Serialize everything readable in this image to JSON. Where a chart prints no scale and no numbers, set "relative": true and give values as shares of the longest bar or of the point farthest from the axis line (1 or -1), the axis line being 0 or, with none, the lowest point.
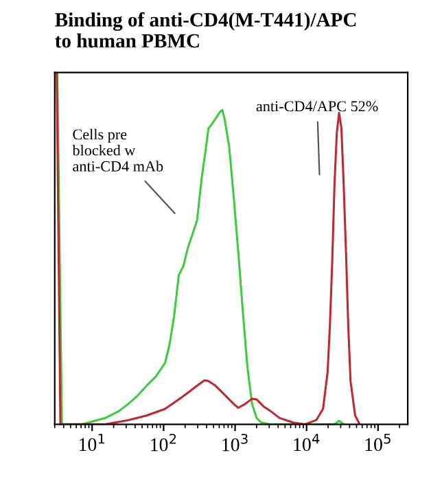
{
  "chart_data": {
    "type": "line",
    "title": "Binding of anti-CD4(M-T441)/APC\nto human PBMC",
    "relative": true,
    "log": "x",
    "xlim": [
      3,
      260000
    ],
    "xticks": [
      {
        "value": 10,
        "label": "10$^{1}$"
      },
      {
        "value": 100,
        "label": "10$^{2}$"
      },
      {
        "value": 1000,
        "label": "10$^{3}$"
      },
      {
        "value": 10000,
        "label": "10$^{4}$"
      },
      {
        "value": 100000,
        "label": "10$^{5}$"
      }
    ],
    "tick_labels": "x",
    "grid": false,
    "marker": "none",
    "line_style": "solid",
    "series": [
      {
        "color": "#3ccc3c",
        "x": [
          3.26,
          3.78,
          7.3,
          15.3,
          23.9,
          32,
          43,
          58,
          78,
          105,
          121,
          140,
          163,
          189,
          219,
          254,
          294,
          340,
          394,
          425,
          457,
          530,
          614,
          662,
          713,
          826,
          957,
          1109,
          1285,
          1489,
          1726,
          2000,
          2318,
          3117,
          24600,
          28500,
          33000
        ],
        "values": [
          1,
          0,
          0,
          0.018,
          0.038,
          0.058,
          0.081,
          0.11,
          0.136,
          0.175,
          0.227,
          0.306,
          0.424,
          0.45,
          0.502,
          0.541,
          0.58,
          0.698,
          0.79,
          0.842,
          0.849,
          0.868,
          0.888,
          0.894,
          0.868,
          0.79,
          0.646,
          0.489,
          0.319,
          0.162,
          0.058,
          0.018,
          0.005,
          0,
          0,
          0.01,
          0
        ]
      },
      {
        "color": "#c0282e",
        "x": [
          3.2,
          3.6,
          15.3,
          32,
          58,
          105,
          163,
          219,
          294,
          372,
          425,
          530,
          713,
          957,
          1109,
          1384,
          1726,
          2000,
          2495,
          3117,
          4190,
          6520,
          9420,
          13650,
          17000,
          19700,
          21200,
          22850,
          24600,
          26500,
          28500,
          30700,
          33000,
          35600,
          38300,
          41200,
          47800,
          55400
        ],
        "values": [
          1,
          0,
          0,
          0.012,
          0.025,
          0.044,
          0.071,
          0.09,
          0.11,
          0.125,
          0.123,
          0.11,
          0.084,
          0.058,
          0.047,
          0.058,
          0.073,
          0.071,
          0.051,
          0.038,
          0.018,
          0.005,
          0,
          0.012,
          0.044,
          0.149,
          0.28,
          0.463,
          0.685,
          0.829,
          0.885,
          0.842,
          0.685,
          0.49,
          0.28,
          0.123,
          0.025,
          0
        ]
      }
    ],
    "annotations": [
      "Cells pre\nblocked w\nanti-CD4 mAb",
      "anti-CD4/APC 52%"
    ]
  }
}
